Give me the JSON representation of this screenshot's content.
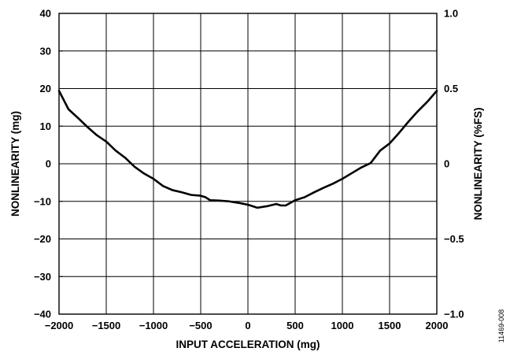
{
  "chart_data": {
    "type": "line",
    "title": "",
    "xlabel": "INPUT ACCELERATION (mg)",
    "ylabel": "NONLINEARITY (mg)",
    "y2label": "NONLINEARITY (%FS)",
    "xlim": [
      -2000,
      2000
    ],
    "ylim": [
      -40,
      40
    ],
    "y2lim": [
      -1.0,
      1.0
    ],
    "xticks": [
      -2000,
      -1500,
      -1000,
      -500,
      0,
      500,
      1000,
      1500,
      2000
    ],
    "xtick_labels": [
      "−2000",
      "−1500",
      "−1000",
      "−500",
      "0",
      "500",
      "1000",
      "1500",
      "2000"
    ],
    "yticks": [
      -40,
      -30,
      -20,
      -10,
      0,
      10,
      20,
      30,
      40
    ],
    "ytick_labels": [
      "−40",
      "−30",
      "−20",
      "−10",
      "0",
      "10",
      "20",
      "30",
      "40"
    ],
    "y2ticks": [
      -1.0,
      -0.5,
      0,
      0.5,
      1.0
    ],
    "y2tick_labels": [
      "−1.0",
      "−0.5",
      "0",
      "0.5",
      "1.0"
    ],
    "grid": true,
    "series": [
      {
        "x": [
          -2000,
          -1900,
          -1800,
          -1700,
          -1600,
          -1500,
          -1400,
          -1300,
          -1200,
          -1100,
          -1000,
          -900,
          -800,
          -700,
          -600,
          -500,
          -450,
          -400,
          -300,
          -200,
          -100,
          0,
          100,
          200,
          300,
          350,
          400,
          500,
          600,
          700,
          800,
          900,
          1000,
          1100,
          1200,
          1300,
          1400,
          1500,
          1600,
          1700,
          1800,
          1900,
          2000
        ],
        "y": [
          19.4,
          14.5,
          12.2,
          9.8,
          7.6,
          5.9,
          3.5,
          1.6,
          -0.8,
          -2.6,
          -4.0,
          -5.9,
          -7.0,
          -7.6,
          -8.3,
          -8.5,
          -8.9,
          -9.7,
          -9.8,
          -10.0,
          -10.4,
          -10.9,
          -11.7,
          -11.3,
          -10.7,
          -11.1,
          -11.1,
          -9.7,
          -8.9,
          -7.6,
          -6.4,
          -5.3,
          -4.0,
          -2.5,
          -1.0,
          0.2,
          3.5,
          5.4,
          8.2,
          11.2,
          14.0,
          16.5,
          19.4
        ]
      }
    ]
  },
  "figure_id": "11469-008"
}
